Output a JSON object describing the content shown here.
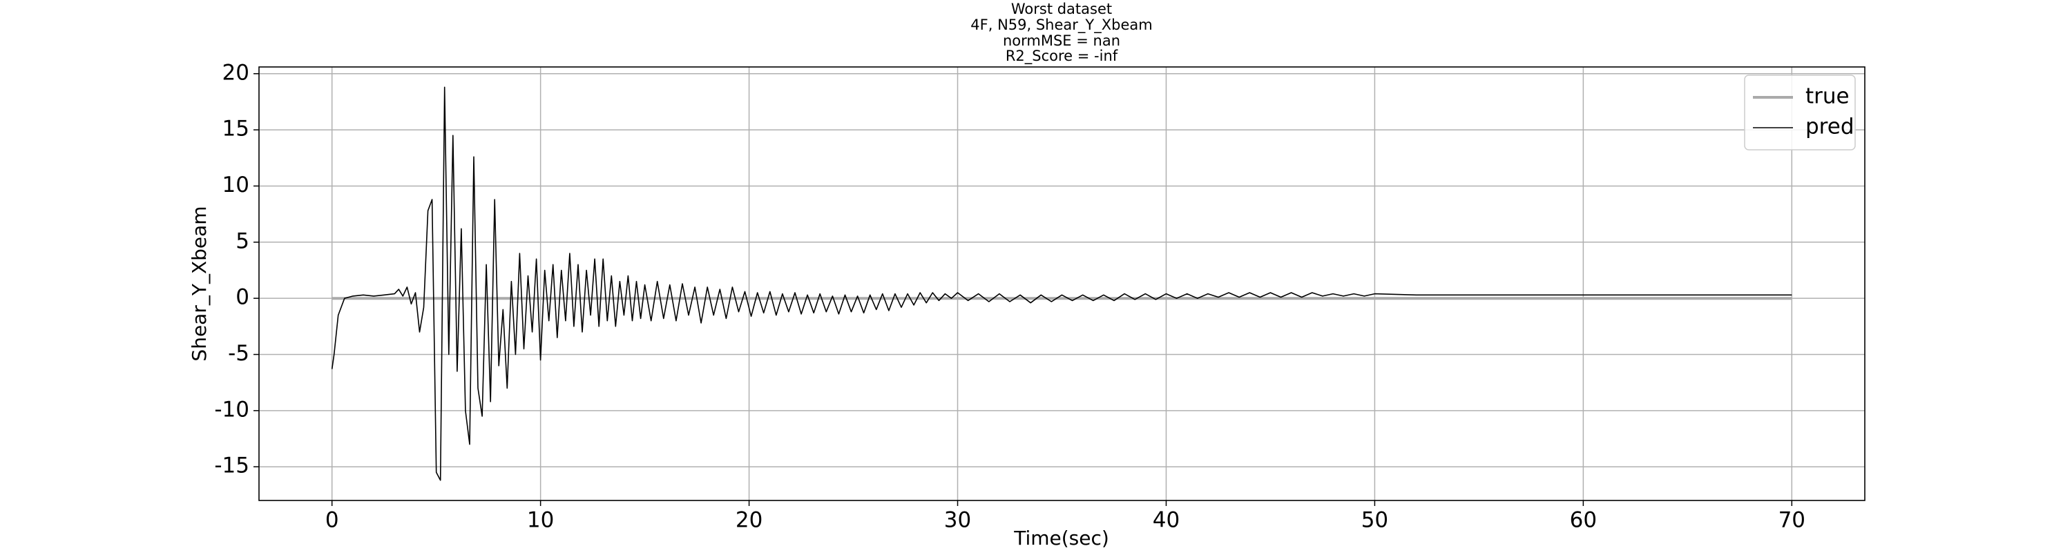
{
  "chart_data": {
    "type": "line",
    "title": [
      "Worst dataset",
      "4F, N59, Shear_Y_Xbeam",
      "normMSE = nan",
      "R2_Score = -inf"
    ],
    "xlabel": "Time(sec)",
    "ylabel": "Shear_Y_Xbeam",
    "xlim": [
      -3.5,
      73.5
    ],
    "ylim": [
      -18,
      20.6
    ],
    "xticks": [
      0,
      10,
      20,
      30,
      40,
      50,
      60,
      70
    ],
    "yticks": [
      -15,
      -10,
      -5,
      0,
      5,
      10,
      15,
      20
    ],
    "grid": true,
    "legend": "upper right",
    "series": [
      {
        "name": "true",
        "color": "#aaaaaa",
        "x": [
          0,
          70
        ],
        "values": [
          0,
          0
        ]
      },
      {
        "name": "pred",
        "color": "#000000",
        "x": [
          0,
          0.1,
          0.3,
          0.6,
          1,
          1.5,
          2,
          2.5,
          3,
          3.2,
          3.4,
          3.6,
          3.8,
          4.0,
          4.2,
          4.4,
          4.6,
          4.8,
          5.0,
          5.2,
          5.4,
          5.6,
          5.8,
          6.0,
          6.2,
          6.4,
          6.6,
          6.8,
          7.0,
          7.2,
          7.4,
          7.6,
          7.8,
          8.0,
          8.2,
          8.4,
          8.6,
          8.8,
          9.0,
          9.2,
          9.4,
          9.6,
          9.8,
          10.0,
          10.2,
          10.4,
          10.6,
          10.8,
          11.0,
          11.2,
          11.4,
          11.6,
          11.8,
          12.0,
          12.2,
          12.4,
          12.6,
          12.8,
          13.0,
          13.2,
          13.4,
          13.6,
          13.8,
          14.0,
          14.2,
          14.4,
          14.6,
          14.8,
          15.0,
          15.3,
          15.6,
          15.9,
          16.2,
          16.5,
          16.8,
          17.1,
          17.4,
          17.7,
          18.0,
          18.3,
          18.6,
          18.9,
          19.2,
          19.5,
          19.8,
          20.1,
          20.4,
          20.7,
          21.0,
          21.3,
          21.6,
          21.9,
          22.2,
          22.5,
          22.8,
          23.1,
          23.4,
          23.7,
          24.0,
          24.3,
          24.6,
          24.9,
          25.2,
          25.5,
          25.8,
          26.1,
          26.4,
          26.7,
          27.0,
          27.3,
          27.6,
          27.9,
          28.2,
          28.5,
          28.8,
          29.1,
          29.4,
          29.7,
          30.0,
          30.5,
          31,
          31.5,
          32,
          32.5,
          33,
          33.5,
          34,
          34.5,
          35,
          35.5,
          36,
          36.5,
          37,
          37.5,
          38,
          38.5,
          39,
          39.5,
          40,
          40.5,
          41,
          41.5,
          42,
          42.5,
          43,
          43.5,
          44,
          44.5,
          45,
          45.5,
          46,
          46.5,
          47,
          47.5,
          48,
          48.5,
          49,
          49.5,
          50,
          52,
          54,
          56,
          58,
          60,
          62,
          64,
          66,
          68,
          70
        ],
        "values": [
          -6.3,
          -5,
          -1.5,
          0,
          0.2,
          0.3,
          0.2,
          0.3,
          0.4,
          0.8,
          0.2,
          1.0,
          -0.5,
          0.5,
          -3,
          -0.8,
          7.8,
          8.8,
          -15.5,
          -16.2,
          18.8,
          -5,
          14.5,
          -6.5,
          6.2,
          -10,
          -13,
          12.6,
          -8,
          -10.5,
          3,
          -9.2,
          8.8,
          -6,
          -1,
          -8,
          1.5,
          -5,
          4,
          -4.5,
          2,
          -3,
          3.5,
          -5.5,
          2.5,
          -2,
          3,
          -3.5,
          2.5,
          -2,
          4,
          -2.5,
          3,
          -3,
          2.5,
          -1.5,
          3.5,
          -2.5,
          3.5,
          -2,
          2,
          -2.5,
          1.5,
          -1.5,
          2,
          -2,
          1.5,
          -1.8,
          1.2,
          -2,
          1.5,
          -1.8,
          1.2,
          -2,
          1.3,
          -1.5,
          1.0,
          -2.2,
          1.0,
          -1.5,
          0.8,
          -1.8,
          1.0,
          -1.2,
          0.6,
          -1.6,
          0.5,
          -1.3,
          0.6,
          -1.5,
          0.4,
          -1.2,
          0.5,
          -1.4,
          0.3,
          -1.3,
          0.4,
          -1.2,
          0.2,
          -1.4,
          0.3,
          -1.2,
          0.2,
          -1.3,
          0.3,
          -1.0,
          0.4,
          -1.1,
          0.4,
          -0.8,
          0.4,
          -0.6,
          0.5,
          -0.4,
          0.5,
          -0.2,
          0.4,
          0,
          0.5,
          -0.2,
          0.4,
          -0.3,
          0.4,
          -0.3,
          0.3,
          -0.4,
          0.3,
          -0.3,
          0.3,
          -0.2,
          0.3,
          -0.2,
          0.3,
          -0.2,
          0.4,
          -0.1,
          0.4,
          -0.1,
          0.4,
          0,
          0.4,
          0,
          0.4,
          0.1,
          0.5,
          0.1,
          0.5,
          0.1,
          0.5,
          0.1,
          0.5,
          0.1,
          0.5,
          0.2,
          0.4,
          0.2,
          0.4,
          0.2,
          0.4,
          0.3,
          0.3,
          0.3,
          0.3,
          0.3,
          0.3,
          0.3,
          0.3,
          0.3,
          0.3
        ]
      }
    ]
  }
}
